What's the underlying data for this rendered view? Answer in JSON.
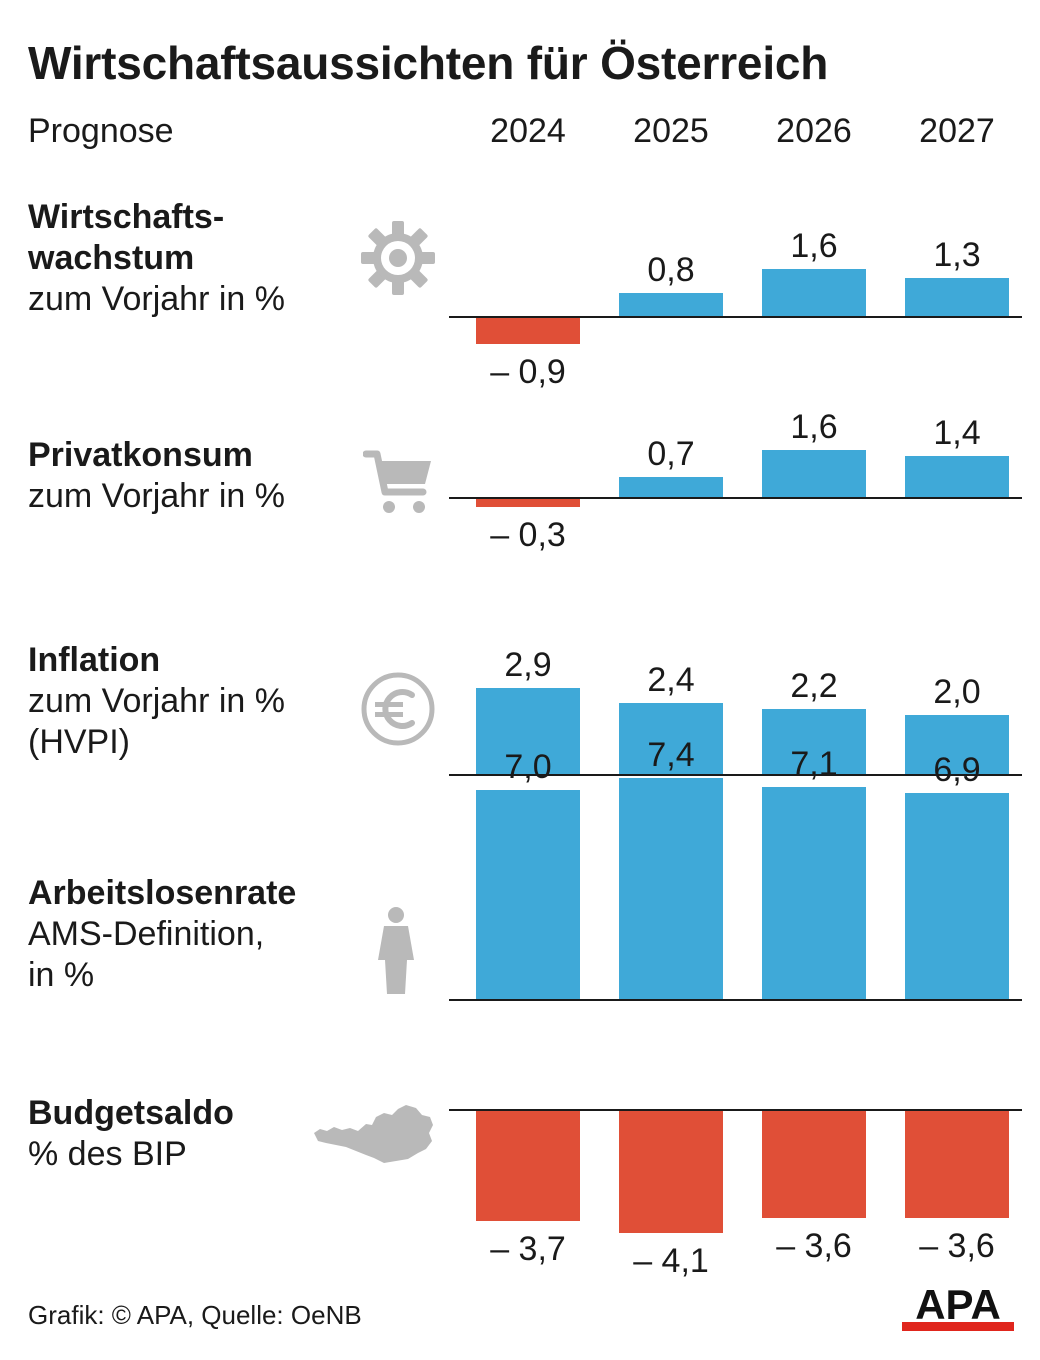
{
  "title": "Wirtschaftsaussichten für Österreich",
  "prognose_label": "Prognose",
  "years": [
    "2024",
    "2025",
    "2026",
    "2027"
  ],
  "colors": {
    "positive": "#3fa9d8",
    "negative": "#e04f37",
    "icon": "#b9b9b9",
    "axis": "#1a1a1a"
  },
  "footer": {
    "credit": "Grafik: © APA, Quelle: OeNB",
    "logo": "APA"
  },
  "rows": [
    {
      "title": "Wirtschafts-",
      "title2": "wachstum",
      "subtitle": "zum Vorjahr in %",
      "subtitle2": "",
      "icon": "gear-icon"
    },
    {
      "title": "Privatkonsum",
      "title2": "",
      "subtitle": "zum Vorjahr in %",
      "subtitle2": "",
      "icon": "shopping-cart-icon"
    },
    {
      "title": "Inflation",
      "title2": "",
      "subtitle": "zum Vorjahr in %",
      "subtitle2": "(HVPI)",
      "icon": "euro-icon"
    },
    {
      "title": "Arbeitslosenrate",
      "title2": "",
      "subtitle": "AMS-Definition,",
      "subtitle2": "in %",
      "icon": "person-icon"
    },
    {
      "title": "Budgetsaldo",
      "title2": "",
      "subtitle": "% des BIP",
      "subtitle2": "",
      "icon": "austria-map-icon"
    }
  ],
  "chart_data": [
    {
      "type": "bar",
      "title": "Wirtschaftswachstum",
      "categories": [
        "2024",
        "2025",
        "2026",
        "2027"
      ],
      "values": [
        -0.9,
        0.8,
        1.6,
        1.3
      ],
      "labels": [
        "– 0,9",
        "0,8",
        "1,6",
        "1,3"
      ]
    },
    {
      "type": "bar",
      "title": "Privatkonsum",
      "categories": [
        "2024",
        "2025",
        "2026",
        "2027"
      ],
      "values": [
        -0.3,
        0.7,
        1.6,
        1.4
      ],
      "labels": [
        "– 0,3",
        "0,7",
        "1,6",
        "1,4"
      ]
    },
    {
      "type": "bar",
      "title": "Inflation",
      "categories": [
        "2024",
        "2025",
        "2026",
        "2027"
      ],
      "values": [
        2.9,
        2.4,
        2.2,
        2.0
      ],
      "labels": [
        "2,9",
        "2,4",
        "2,2",
        "2,0"
      ]
    },
    {
      "type": "bar",
      "title": "Arbeitslosenrate",
      "categories": [
        "2024",
        "2025",
        "2026",
        "2027"
      ],
      "values": [
        7.0,
        7.4,
        7.1,
        6.9
      ],
      "labels": [
        "7,0",
        "7,4",
        "7,1",
        "6,9"
      ]
    },
    {
      "type": "bar",
      "title": "Budgetsaldo",
      "categories": [
        "2024",
        "2025",
        "2026",
        "2027"
      ],
      "values": [
        -3.7,
        -4.1,
        -3.6,
        -3.6
      ],
      "labels": [
        "– 3,7",
        "– 4,1",
        "– 3,6",
        "– 3,6"
      ]
    }
  ]
}
